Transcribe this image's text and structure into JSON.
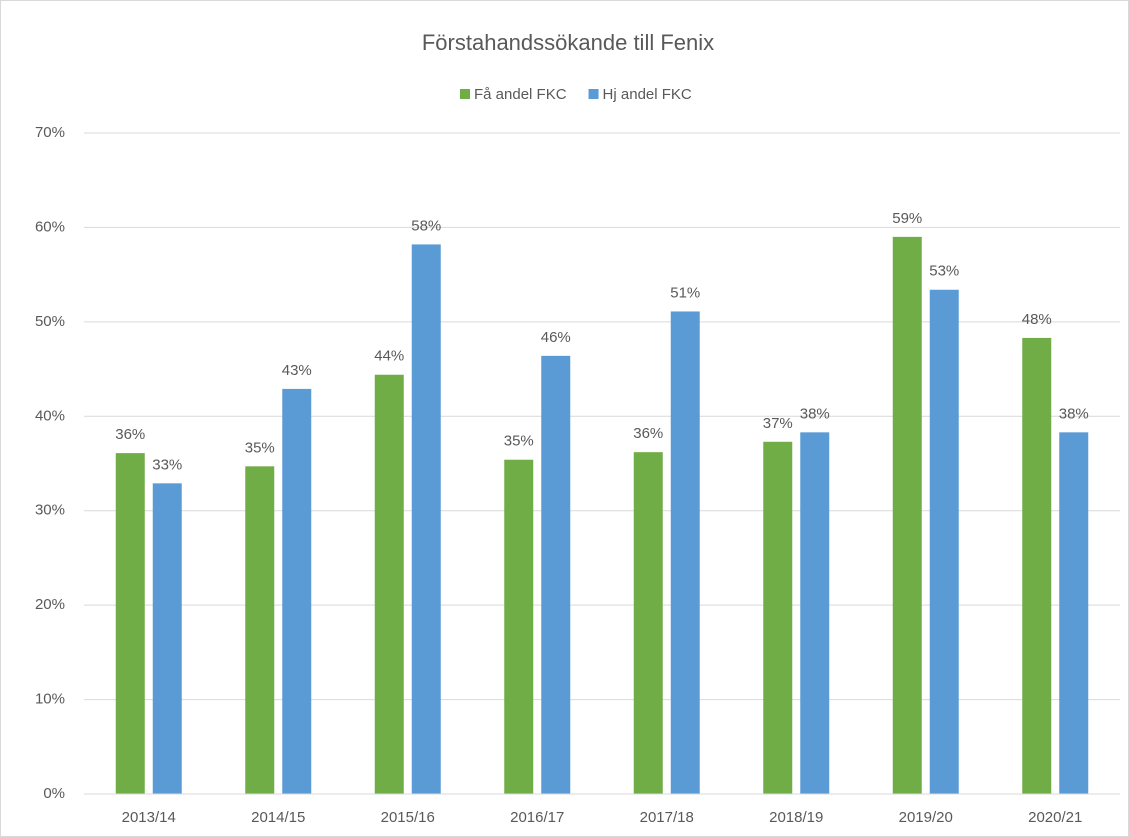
{
  "chart_data": {
    "type": "bar",
    "title": "Förstahandssökande till Fenix",
    "categories": [
      "2013/14",
      "2014/15",
      "2015/16",
      "2016/17",
      "2017/18",
      "2018/19",
      "2019/20",
      "2020/21"
    ],
    "series": [
      {
        "name": "Få andel FKC",
        "color": "#70ad47",
        "values": [
          36.1,
          34.7,
          44.4,
          35.4,
          36.2,
          37.3,
          59.0,
          48.3
        ],
        "value_labels": [
          "36%",
          "35%",
          "44%",
          "35%",
          "36%",
          "37%",
          "59%",
          "48%"
        ]
      },
      {
        "name": "Hj andel FKC",
        "color": "#5b9bd5",
        "values": [
          32.9,
          42.9,
          58.2,
          46.4,
          51.1,
          38.3,
          53.4,
          38.3
        ],
        "value_labels": [
          "33%",
          "43%",
          "58%",
          "46%",
          "51%",
          "38%",
          "53%",
          "38%"
        ]
      }
    ],
    "ylim": [
      0,
      70
    ],
    "yticks": [
      {
        "value": 0,
        "label": "0%"
      },
      {
        "value": 10,
        "label": "10%"
      },
      {
        "value": 20,
        "label": "20%"
      },
      {
        "value": 30,
        "label": "30%"
      },
      {
        "value": 40,
        "label": "40%"
      },
      {
        "value": 50,
        "label": "50%"
      },
      {
        "value": 60,
        "label": "60%"
      },
      {
        "value": 70,
        "label": "70%"
      }
    ],
    "grid": true,
    "legend": "top"
  }
}
